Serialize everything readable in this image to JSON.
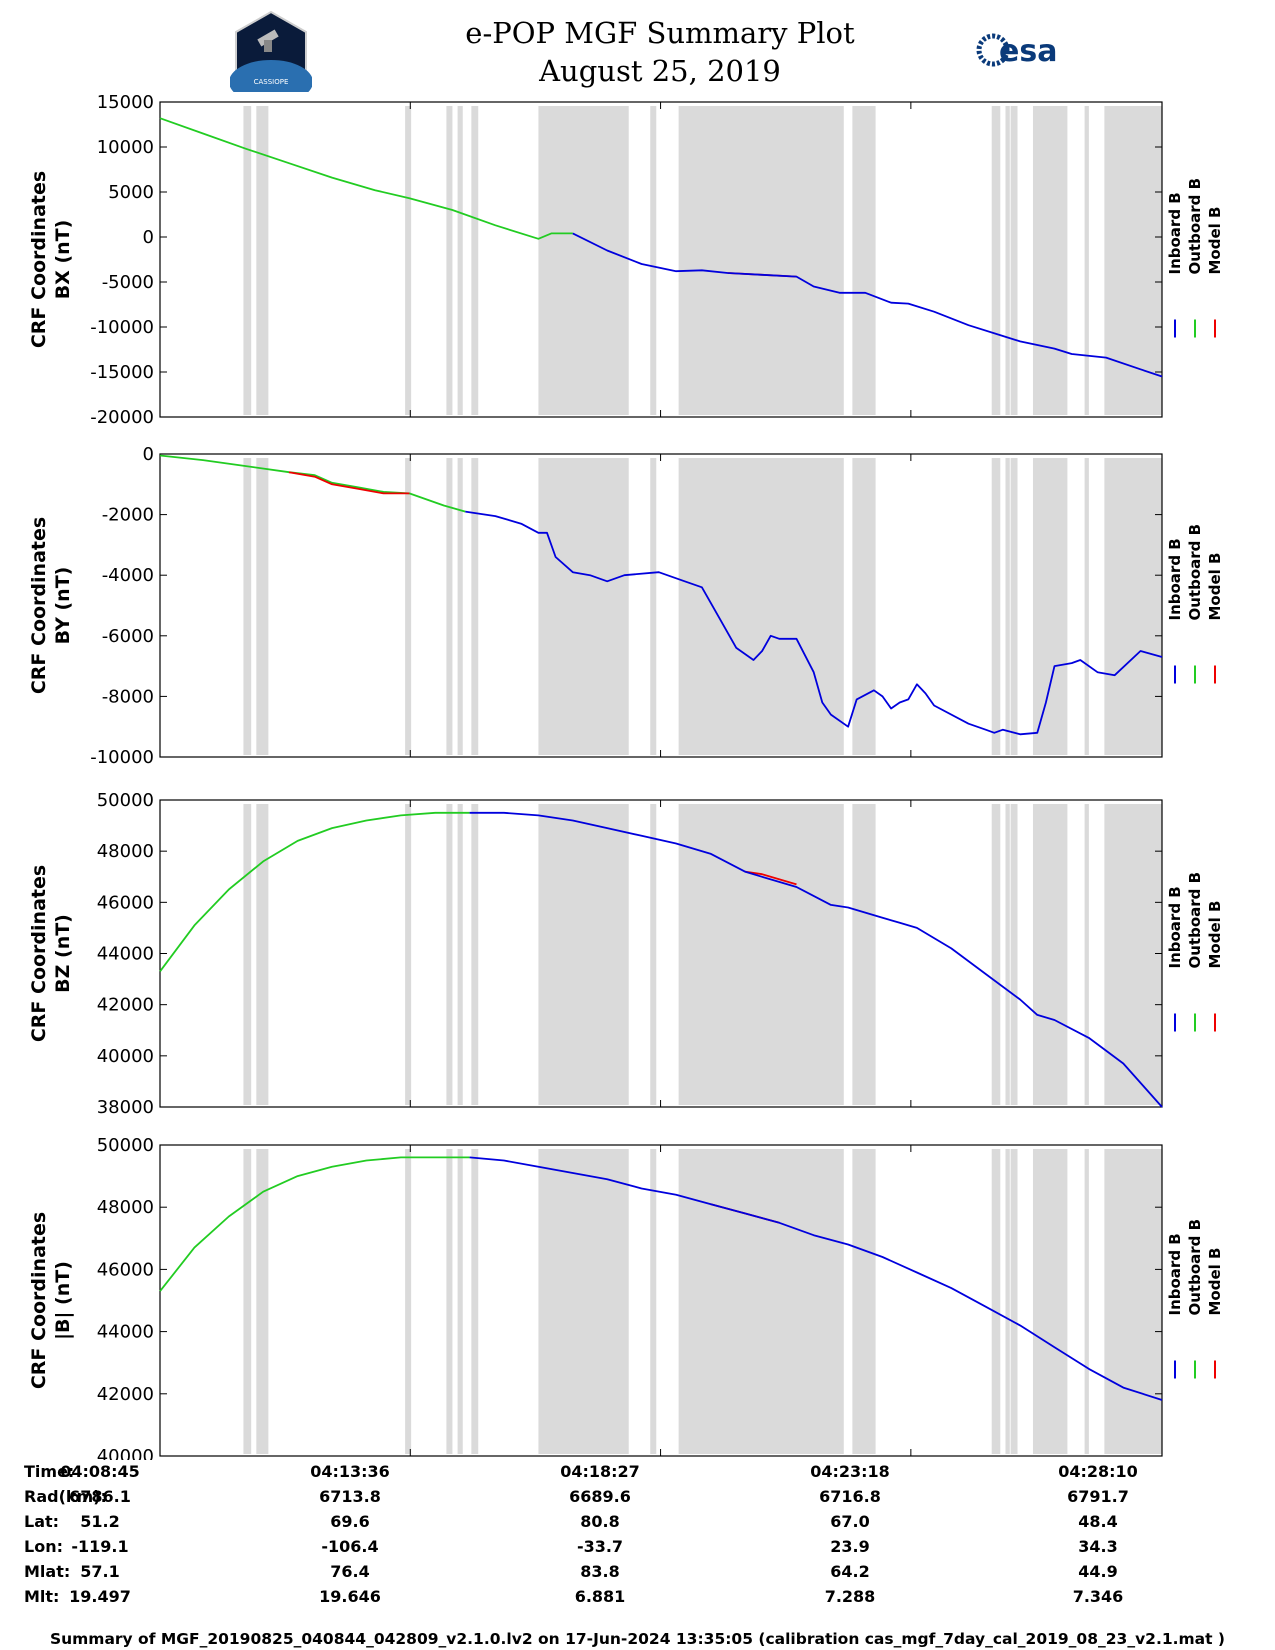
{
  "header": {
    "title_line1": "e-POP MGF Summary Plot",
    "title_line2": "August 25, 2019",
    "mission_logo_text": "CASSIOPE",
    "agency_logo_text": "esa"
  },
  "colors": {
    "inboard": "#0000dd",
    "outboard": "#22cc22",
    "model": "#ee0000",
    "gap": "#dadada"
  },
  "legend": [
    "Inboard B",
    "Outboard B",
    "Model B"
  ],
  "chart_data": [
    {
      "type": "line",
      "ylabel_line1": "CRF Coordinates",
      "ylabel_line2": "BX (nT)",
      "ylim": [
        -20000,
        15000
      ],
      "yticks": [
        15000,
        10000,
        5000,
        0,
        -5000,
        -10000,
        -15000,
        -20000
      ],
      "xlim": [
        0,
        1165
      ],
      "xticks": [
        0,
        291,
        582,
        873,
        1165
      ],
      "gaps": [
        [
          97,
          106
        ],
        [
          112,
          126
        ],
        [
          285,
          292
        ],
        [
          333,
          340
        ],
        [
          346,
          352
        ],
        [
          362,
          370
        ],
        [
          440,
          545
        ],
        [
          570,
          577
        ],
        [
          603,
          795
        ],
        [
          805,
          832
        ],
        [
          967,
          977
        ],
        [
          983,
          988
        ],
        [
          989,
          997
        ],
        [
          1015,
          1055
        ],
        [
          1075,
          1080
        ],
        [
          1098,
          1165
        ]
      ],
      "series": [
        {
          "name": "Outboard B",
          "x": [
            0,
            50,
            100,
            150,
            200,
            250,
            290,
            340,
            390,
            440,
            455,
            470,
            480
          ],
          "values": [
            13200,
            11500,
            9800,
            8200,
            6600,
            5200,
            4300,
            3000,
            1300,
            -200,
            400,
            400,
            400
          ]
        },
        {
          "name": "Inboard B",
          "x": [
            480,
            520,
            560,
            600,
            630,
            660,
            700,
            740,
            760,
            790,
            820,
            850,
            870,
            900,
            940,
            980,
            1000,
            1040,
            1060,
            1100,
            1140,
            1165
          ],
          "values": [
            400,
            -1500,
            -3000,
            -3800,
            -3700,
            -4000,
            -4200,
            -4400,
            -5500,
            -6200,
            -6200,
            -7300,
            -7400,
            -8300,
            -9800,
            -11000,
            -11600,
            -12400,
            -13000,
            -13400,
            -14700,
            -15500
          ]
        },
        {
          "name": "Model B",
          "x": [
            660,
            700,
            740
          ],
          "values": [
            -4000,
            -4200,
            -4400
          ]
        }
      ]
    },
    {
      "type": "line",
      "ylabel_line1": "CRF Coordinates",
      "ylabel_line2": "BY (nT)",
      "ylim": [
        -10000,
        0
      ],
      "yticks": [
        0,
        -2000,
        -4000,
        -6000,
        -8000,
        -10000
      ],
      "xlim": [
        0,
        1165
      ],
      "xticks": [
        0,
        291,
        582,
        873,
        1165
      ],
      "gaps": [
        [
          97,
          106
        ],
        [
          112,
          126
        ],
        [
          285,
          292
        ],
        [
          333,
          340
        ],
        [
          346,
          352
        ],
        [
          362,
          370
        ],
        [
          440,
          545
        ],
        [
          570,
          577
        ],
        [
          603,
          795
        ],
        [
          805,
          832
        ],
        [
          967,
          977
        ],
        [
          983,
          988
        ],
        [
          989,
          997
        ],
        [
          1015,
          1055
        ],
        [
          1075,
          1080
        ],
        [
          1098,
          1165
        ]
      ],
      "series": [
        {
          "name": "Outboard B",
          "x": [
            0,
            50,
            100,
            150,
            180,
            200,
            230,
            260,
            290,
            330,
            355
          ],
          "values": [
            -50,
            -200,
            -400,
            -600,
            -700,
            -950,
            -1100,
            -1250,
            -1300,
            -1700,
            -1900
          ]
        },
        {
          "name": "Inboard B",
          "x": [
            355,
            390,
            420,
            440,
            450,
            460,
            480,
            500,
            520,
            540,
            580,
            610,
            630,
            650,
            670,
            690,
            700,
            710,
            720,
            740,
            760,
            770,
            780,
            800,
            810,
            830,
            840,
            850,
            860,
            870,
            880,
            890,
            900,
            940,
            960,
            970,
            980,
            1000,
            1020,
            1030,
            1040,
            1060,
            1070,
            1090,
            1110,
            1140,
            1165
          ],
          "values": [
            -1900,
            -2050,
            -2300,
            -2600,
            -2600,
            -3400,
            -3900,
            -4000,
            -4200,
            -4000,
            -3900,
            -4200,
            -4400,
            -5400,
            -6400,
            -6800,
            -6500,
            -6000,
            -6100,
            -6100,
            -7200,
            -8200,
            -8600,
            -9000,
            -8100,
            -7800,
            -8000,
            -8400,
            -8200,
            -8100,
            -7600,
            -7900,
            -8300,
            -8900,
            -9100,
            -9200,
            -9100,
            -9250,
            -9200,
            -8200,
            -7000,
            -6900,
            -6800,
            -7200,
            -7300,
            -6500,
            -6700
          ]
        },
        {
          "name": "Model B",
          "x": [
            150,
            180,
            200,
            230,
            260,
            290
          ],
          "values": [
            -600,
            -750,
            -1000,
            -1150,
            -1300,
            -1300
          ]
        }
      ]
    },
    {
      "type": "line",
      "ylabel_line1": "CRF Coordinates",
      "ylabel_line2": "BZ (nT)",
      "ylim": [
        38000,
        50000
      ],
      "yticks": [
        50000,
        48000,
        46000,
        44000,
        42000,
        40000,
        38000
      ],
      "xlim": [
        0,
        1165
      ],
      "xticks": [
        0,
        291,
        582,
        873,
        1165
      ],
      "gaps": [
        [
          97,
          106
        ],
        [
          112,
          126
        ],
        [
          285,
          292
        ],
        [
          333,
          340
        ],
        [
          346,
          352
        ],
        [
          362,
          370
        ],
        [
          440,
          545
        ],
        [
          570,
          577
        ],
        [
          603,
          795
        ],
        [
          805,
          832
        ],
        [
          967,
          977
        ],
        [
          983,
          988
        ],
        [
          989,
          997
        ],
        [
          1015,
          1055
        ],
        [
          1075,
          1080
        ],
        [
          1098,
          1165
        ]
      ],
      "series": [
        {
          "name": "Outboard B",
          "x": [
            0,
            40,
            80,
            120,
            160,
            200,
            240,
            280,
            320,
            360
          ],
          "values": [
            43300,
            45100,
            46500,
            47600,
            48400,
            48900,
            49200,
            49400,
            49500,
            49500
          ]
        },
        {
          "name": "Inboard B",
          "x": [
            360,
            400,
            440,
            480,
            520,
            560,
            600,
            640,
            680,
            700,
            740,
            780,
            800,
            840,
            860,
            880,
            920,
            960,
            1000,
            1020,
            1040,
            1080,
            1120,
            1165
          ],
          "values": [
            49500,
            49500,
            49400,
            49200,
            48900,
            48600,
            48300,
            47900,
            47200,
            47000,
            46600,
            45900,
            45800,
            45400,
            45200,
            45000,
            44200,
            43200,
            42200,
            41600,
            41400,
            40700,
            39700,
            38000
          ]
        },
        {
          "name": "Model B",
          "x": [
            680,
            700,
            740
          ],
          "values": [
            47200,
            47100,
            46700
          ]
        }
      ]
    },
    {
      "type": "line",
      "ylabel_line1": "CRF Coordinates",
      "ylabel_line2": "|B| (nT)",
      "ylim": [
        40000,
        50000
      ],
      "yticks": [
        50000,
        48000,
        46000,
        44000,
        42000,
        40000
      ],
      "xlim": [
        0,
        1165
      ],
      "xticks": [
        0,
        291,
        582,
        873,
        1165
      ],
      "gaps": [
        [
          97,
          106
        ],
        [
          112,
          126
        ],
        [
          285,
          292
        ],
        [
          333,
          340
        ],
        [
          346,
          352
        ],
        [
          362,
          370
        ],
        [
          440,
          545
        ],
        [
          570,
          577
        ],
        [
          603,
          795
        ],
        [
          805,
          832
        ],
        [
          967,
          977
        ],
        [
          983,
          988
        ],
        [
          989,
          997
        ],
        [
          1015,
          1055
        ],
        [
          1075,
          1080
        ],
        [
          1098,
          1165
        ]
      ],
      "series": [
        {
          "name": "Outboard B",
          "x": [
            0,
            40,
            80,
            120,
            160,
            200,
            240,
            280,
            320,
            360
          ],
          "values": [
            45300,
            46700,
            47700,
            48500,
            49000,
            49300,
            49500,
            49600,
            49600,
            49600
          ]
        },
        {
          "name": "Inboard B",
          "x": [
            360,
            400,
            440,
            480,
            520,
            560,
            600,
            640,
            680,
            720,
            760,
            800,
            840,
            880,
            920,
            960,
            1000,
            1040,
            1080,
            1120,
            1165
          ],
          "values": [
            49600,
            49500,
            49300,
            49100,
            48900,
            48600,
            48400,
            48100,
            47800,
            47500,
            47100,
            46800,
            46400,
            45900,
            45400,
            44800,
            44200,
            43500,
            42800,
            42200,
            41800
          ]
        },
        {
          "name": "Model B",
          "x": [
            640,
            680,
            720
          ],
          "values": [
            48100,
            47800,
            47500
          ]
        }
      ]
    }
  ],
  "orbit_table": {
    "rows": [
      {
        "label": "Time:",
        "values": [
          "04:08:45",
          "04:13:36",
          "04:18:27",
          "04:23:18",
          "04:28:10"
        ]
      },
      {
        "label": "Rad(km):",
        "values": [
          "6786.1",
          "6713.8",
          "6689.6",
          "6716.8",
          "6791.7"
        ]
      },
      {
        "label": "Lat:",
        "values": [
          "51.2",
          "69.6",
          "80.8",
          "67.0",
          "48.4"
        ]
      },
      {
        "label": "Lon:",
        "values": [
          "-119.1",
          "-106.4",
          "-33.7",
          "23.9",
          "34.3"
        ]
      },
      {
        "label": "Mlat:",
        "values": [
          "57.1",
          "76.4",
          "83.8",
          "64.2",
          "44.9"
        ]
      },
      {
        "label": "Mlt:",
        "values": [
          "19.497",
          "19.646",
          "6.881",
          "7.288",
          "7.346"
        ]
      }
    ]
  },
  "footer": "Summary of MGF_20190825_040844_042809_v2.1.0.lv2 on 17-Jun-2024 13:35:05 (calibration cas_mgf_7day_cal_2019_08_23_v2.1.mat )"
}
